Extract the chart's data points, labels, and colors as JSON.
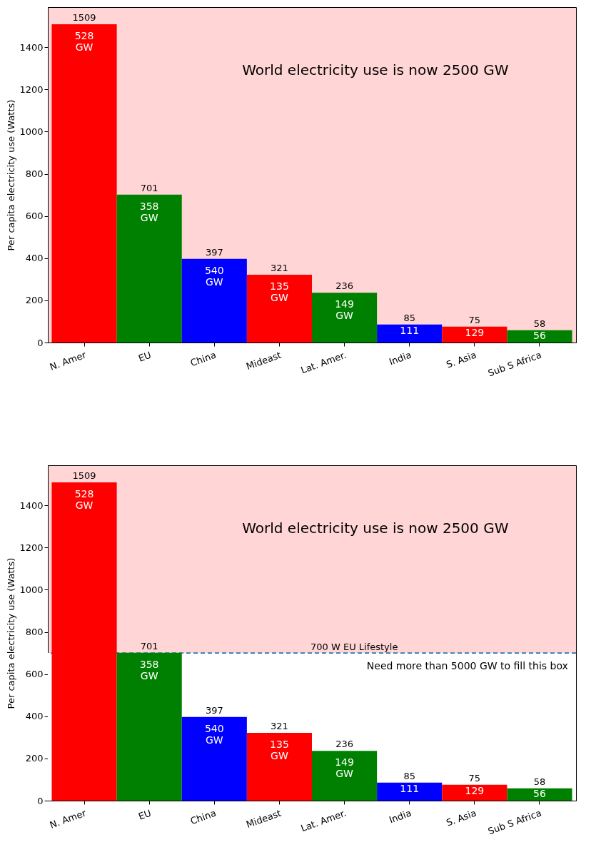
{
  "chart_data": [
    {
      "type": "bar",
      "ylabel": "Per capita electricity use (Watts)",
      "categories": [
        "N. Amer",
        "EU",
        "China",
        "Mideast",
        "Lat. Amer.",
        "India",
        "S. Asia",
        "Sub S Africa"
      ],
      "values": [
        1509,
        701,
        397,
        321,
        236,
        85,
        75,
        58
      ],
      "colors": [
        "#ff0000",
        "#008000",
        "#0000ff",
        "#ff0000",
        "#008000",
        "#0000ff",
        "#ff0000",
        "#008000"
      ],
      "ylim": [
        0,
        1590
      ],
      "yticks": [
        0,
        200,
        400,
        600,
        800,
        1000,
        1200,
        1400
      ],
      "data_labels": true,
      "grid": false,
      "annotations": [
        "World electricity use is now 2500 GW",
        "528\nGW",
        "358\nGW",
        "540\nGW",
        "135\nGW",
        "149\nGW",
        "111",
        "129",
        "56"
      ]
    },
    {
      "type": "bar",
      "ylabel": "Per capita electricity use (Watts)",
      "categories": [
        "N. Amer",
        "EU",
        "China",
        "Mideast",
        "Lat. Amer.",
        "India",
        "S. Asia",
        "Sub S Africa"
      ],
      "values": [
        1509,
        701,
        397,
        321,
        236,
        85,
        75,
        58
      ],
      "colors": [
        "#ff0000",
        "#008000",
        "#0000ff",
        "#ff0000",
        "#008000",
        "#0000ff",
        "#ff0000",
        "#008000"
      ],
      "ylim": [
        0,
        1590
      ],
      "yticks": [
        0,
        200,
        400,
        600,
        800,
        1000,
        1200,
        1400
      ],
      "data_labels": true,
      "grid": false,
      "bands": [
        {
          "axis": "y",
          "from": 0,
          "to": 700,
          "color": "#ffffff"
        }
      ],
      "ref_lines": [
        {
          "axis": "y",
          "value": 700,
          "label": "700 W EU Lifestyle",
          "color": "#1f77b4",
          "line_style": "dashed"
        }
      ],
      "annotations": [
        "World electricity use is now 2500 GW",
        "Need more than 5000 GW to fill this box",
        "528\nGW",
        "358\nGW",
        "540\nGW",
        "135\nGW",
        "149\nGW",
        "111",
        "129",
        "56"
      ]
    }
  ]
}
